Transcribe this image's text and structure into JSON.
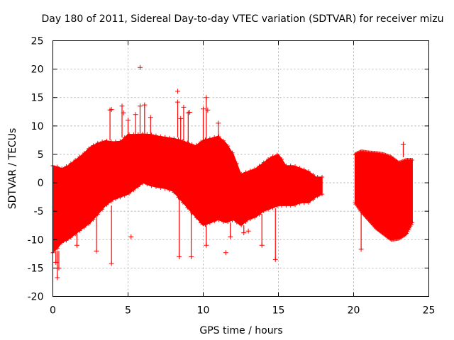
{
  "chart_data": {
    "type": "scatter",
    "title": "Day 180 of 2011, Sidereal Day-to-day VTEC variation (SDTVAR) for receiver mizu",
    "xlabel": "GPS time / hours",
    "ylabel": "SDTVAR / TECUs",
    "xlim": [
      0,
      25
    ],
    "ylim": [
      -20,
      25
    ],
    "xticks": [
      0,
      5,
      10,
      15,
      20,
      25
    ],
    "yticks": [
      -20,
      -15,
      -10,
      -5,
      0,
      5,
      10,
      15,
      20,
      25
    ],
    "grid": true,
    "marker": "+",
    "series_color": "#ff0000",
    "series": [
      {
        "name": "SDTVAR",
        "envelope": {
          "segments": [
            {
              "x": [
                0.0,
                0.3,
                0.6,
                1.0,
                1.5,
                2.0,
                2.5,
                3.0,
                3.5,
                4.0,
                4.5,
                5.0,
                5.5,
                6.0,
                6.5,
                7.0,
                7.5,
                8.0,
                8.5,
                9.0,
                9.5,
                10.0,
                10.5,
                11.0,
                11.5,
                12.0,
                12.5,
                13.0,
                13.5,
                14.0,
                14.5,
                15.0,
                15.5,
                16.0,
                16.5,
                17.0,
                17.5,
                17.9
              ],
              "upper": [
                3.0,
                2.8,
                2.5,
                3.0,
                4.0,
                5.0,
                6.3,
                7.0,
                7.4,
                7.2,
                7.3,
                8.5,
                8.5,
                8.6,
                8.5,
                8.2,
                8.0,
                7.8,
                7.5,
                7.0,
                6.5,
                7.5,
                7.8,
                8.2,
                7.0,
                5.0,
                1.5,
                2.0,
                2.5,
                3.5,
                4.5,
                5.0,
                3.0,
                3.0,
                2.5,
                2.0,
                1.0,
                1.0
              ],
              "lower": [
                -12.3,
                -11.5,
                -10.5,
                -10.0,
                -9.0,
                -8.0,
                -7.0,
                -5.5,
                -4.0,
                -3.0,
                -2.5,
                -2.0,
                -1.0,
                0.0,
                -0.5,
                -0.8,
                -1.0,
                -1.5,
                -3.0,
                -4.5,
                -6.0,
                -7.5,
                -7.0,
                -6.5,
                -7.0,
                -6.5,
                -7.5,
                -6.5,
                -6.0,
                -5.0,
                -4.5,
                -4.0,
                -4.0,
                -4.0,
                -3.5,
                -3.5,
                -2.5,
                -2.0
              ]
            },
            {
              "x": [
                20.1,
                20.5,
                21.0,
                21.5,
                22.0,
                22.5,
                23.0,
                23.5,
                23.9
              ],
              "upper": [
                5.0,
                5.5,
                5.3,
                5.2,
                5.0,
                4.5,
                3.5,
                4.0,
                4.0
              ],
              "lower": [
                -3.5,
                -5.0,
                -6.5,
                -8.0,
                -9.0,
                -10.0,
                -9.8,
                -9.0,
                -7.0
              ]
            }
          ]
        },
        "spikes": [
          {
            "x": 0.2,
            "from": -12.0,
            "to": -14.0
          },
          {
            "x": 0.3,
            "from": -12.0,
            "to": -16.7
          },
          {
            "x": 0.4,
            "from": -12.0,
            "to": -15.0
          },
          {
            "x": 1.6,
            "from": -8.0,
            "to": -11.0
          },
          {
            "x": 2.9,
            "from": -6.0,
            "to": -12.0
          },
          {
            "x": 3.9,
            "from": -4.0,
            "to": -14.2
          },
          {
            "x": 3.8,
            "from": 7.5,
            "to": 12.8
          },
          {
            "x": 4.6,
            "from": 8.0,
            "to": 13.5
          },
          {
            "x": 5.0,
            "from": 8.5,
            "to": 11.0
          },
          {
            "x": 5.5,
            "from": 8.5,
            "to": 12.0
          },
          {
            "x": 5.8,
            "from": 8.7,
            "to": 13.5
          },
          {
            "x": 6.1,
            "from": 8.7,
            "to": 13.7
          },
          {
            "x": 6.5,
            "from": 8.5,
            "to": 11.5
          },
          {
            "x": 8.3,
            "from": 8.0,
            "to": 14.2
          },
          {
            "x": 8.4,
            "from": -1.5,
            "to": -13.0
          },
          {
            "x": 8.5,
            "from": 7.5,
            "to": 11.3
          },
          {
            "x": 8.7,
            "from": 7.5,
            "to": 13.3
          },
          {
            "x": 9.0,
            "from": 7.0,
            "to": 12.3
          },
          {
            "x": 9.2,
            "from": -4.5,
            "to": -13.0
          },
          {
            "x": 10.0,
            "from": 7.5,
            "to": 13.0
          },
          {
            "x": 10.2,
            "from": 7.5,
            "to": 15.0
          },
          {
            "x": 10.2,
            "from": -7.5,
            "to": -11.0
          },
          {
            "x": 11.0,
            "from": 8.2,
            "to": 10.5
          },
          {
            "x": 11.8,
            "from": -7.0,
            "to": -9.5
          },
          {
            "x": 12.7,
            "from": -7.5,
            "to": -8.8
          },
          {
            "x": 13.9,
            "from": -5.5,
            "to": -11.0
          },
          {
            "x": 14.8,
            "from": -4.5,
            "to": -13.5
          },
          {
            "x": 20.5,
            "from": -5.0,
            "to": -11.7
          },
          {
            "x": 23.3,
            "from": 4.5,
            "to": 6.8
          }
        ],
        "outliers": [
          {
            "x": 5.8,
            "y": 20.3
          },
          {
            "x": 8.3,
            "y": 16.1
          },
          {
            "x": 3.9,
            "y": 12.9
          },
          {
            "x": 11.5,
            "y": -12.3
          },
          {
            "x": 5.2,
            "y": -9.5
          },
          {
            "x": 13.0,
            "y": -8.5
          },
          {
            "x": 4.7,
            "y": 12.3
          },
          {
            "x": 9.1,
            "y": 12.4
          },
          {
            "x": 10.3,
            "y": 12.8
          }
        ]
      }
    ]
  }
}
